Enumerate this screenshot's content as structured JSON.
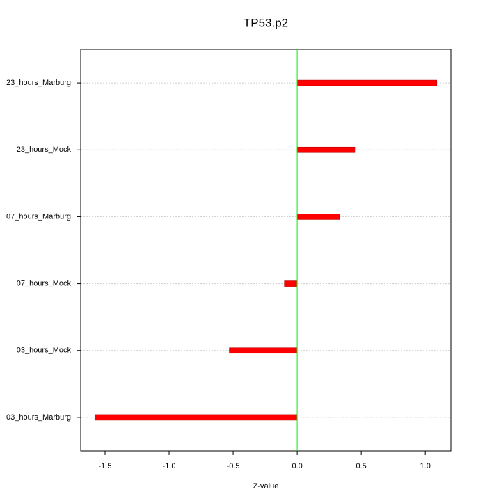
{
  "chart_data": {
    "type": "hbar",
    "title": "TP53.p2",
    "x_label": "Z-value",
    "categories": [
      "23_hours_Marburg",
      "23_hours_Mock",
      "07_hours_Marburg",
      "07_hours_Mock",
      "03_hours_Mock",
      "03_hours_Marburg"
    ],
    "values": [
      1.09,
      0.45,
      0.33,
      -0.1,
      -0.53,
      -1.58
    ],
    "color": "#ff0000",
    "zero_line_color": "#00ee00",
    "xlim": [
      -1.69,
      1.2
    ],
    "xticks": [
      -1.5,
      {
        "value": -1.0,
        "label": "-1.0"
      },
      -0.5,
      {
        "value": 0.0,
        "label": "0.0"
      },
      0.5,
      {
        "value": 1.0,
        "label": "1.0"
      }
    ],
    "grid": true
  }
}
